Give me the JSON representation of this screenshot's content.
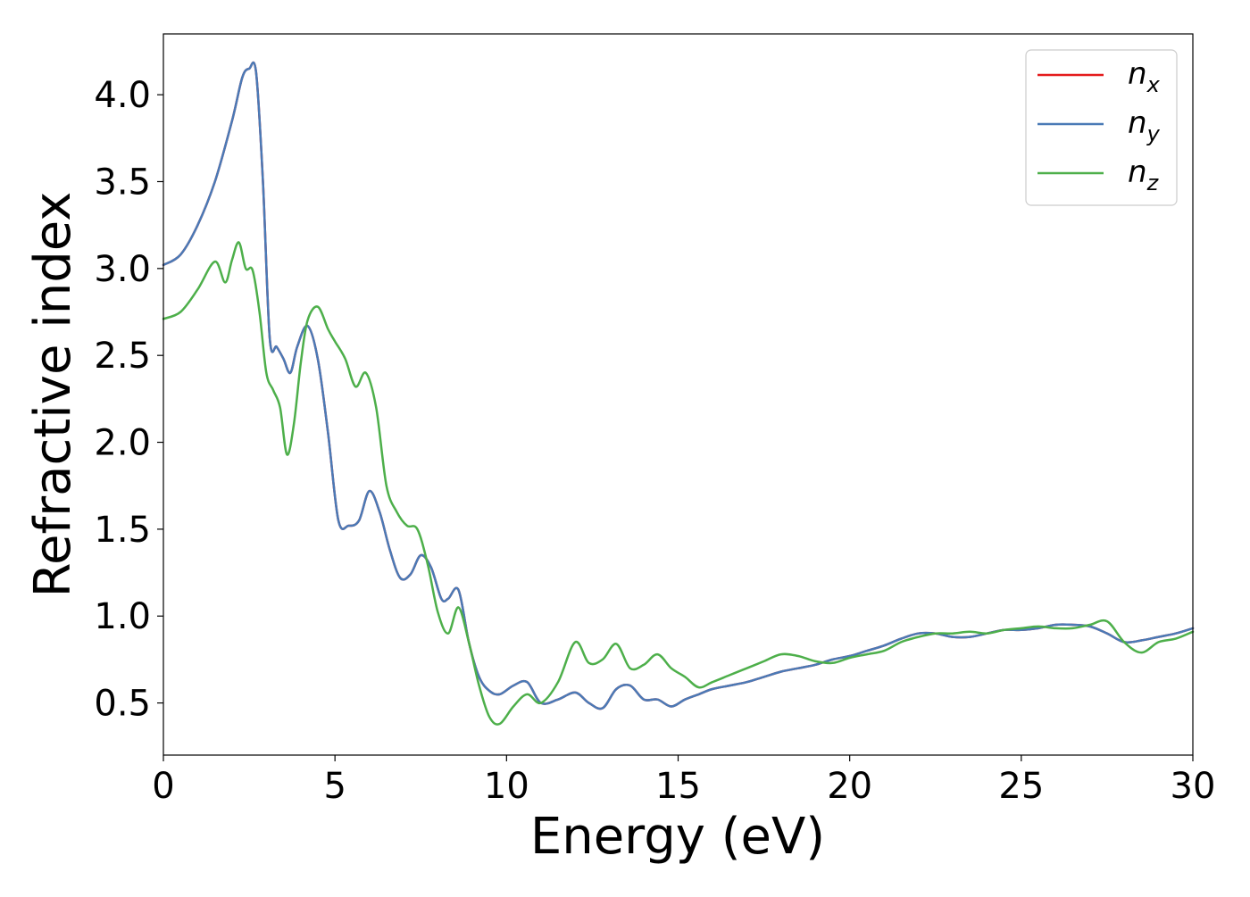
{
  "chart_data": {
    "type": "line",
    "title": "",
    "xlabel": "Energy (eV)",
    "ylabel": "Refractive index",
    "xlim": [
      0,
      30
    ],
    "ylim": [
      0.2,
      4.35
    ],
    "xticks": [
      0,
      5,
      10,
      15,
      20,
      25,
      30
    ],
    "xtick_labels": [
      "0",
      "5",
      "10",
      "15",
      "20",
      "25",
      "30"
    ],
    "yticks": [
      0.5,
      1.0,
      1.5,
      2.0,
      2.5,
      3.0,
      3.5,
      4.0
    ],
    "ytick_labels": [
      "0.5",
      "1.0",
      "1.5",
      "2.0",
      "2.5",
      "3.0",
      "3.5",
      "4.0"
    ],
    "grid": false,
    "legend_position": "top-right",
    "series": [
      {
        "name": "n_x",
        "label_base": "n",
        "label_sub": "x",
        "color": "#e41a1c",
        "x": [
          0,
          0.5,
          1.0,
          1.5,
          2.0,
          2.3,
          2.5,
          2.7,
          2.9,
          3.1,
          3.3,
          3.5,
          3.7,
          3.9,
          4.2,
          4.5,
          4.8,
          5.1,
          5.4,
          5.7,
          6.0,
          6.3,
          6.6,
          6.9,
          7.2,
          7.5,
          7.8,
          8.1,
          8.3,
          8.6,
          8.9,
          9.2,
          9.5,
          9.8,
          10.2,
          10.6,
          11.0,
          11.5,
          12.0,
          12.4,
          12.8,
          13.2,
          13.6,
          14.0,
          14.4,
          14.8,
          15.2,
          15.6,
          16.0,
          16.5,
          17.0,
          17.5,
          18.0,
          18.5,
          19.0,
          19.5,
          20.0,
          20.5,
          21.0,
          21.5,
          22.0,
          22.5,
          23.0,
          23.5,
          24.0,
          24.5,
          25.0,
          25.5,
          26.0,
          26.5,
          27.0,
          27.5,
          28.0,
          28.5,
          29.0,
          29.5,
          30.0
        ],
        "y": [
          3.02,
          3.08,
          3.25,
          3.5,
          3.85,
          4.1,
          4.15,
          4.13,
          3.5,
          2.6,
          2.55,
          2.48,
          2.4,
          2.55,
          2.67,
          2.48,
          2.05,
          1.55,
          1.52,
          1.55,
          1.72,
          1.6,
          1.38,
          1.22,
          1.24,
          1.35,
          1.28,
          1.1,
          1.1,
          1.15,
          0.85,
          0.65,
          0.57,
          0.55,
          0.6,
          0.62,
          0.5,
          0.52,
          0.56,
          0.5,
          0.47,
          0.58,
          0.6,
          0.52,
          0.52,
          0.48,
          0.52,
          0.55,
          0.58,
          0.6,
          0.62,
          0.65,
          0.68,
          0.7,
          0.72,
          0.75,
          0.77,
          0.8,
          0.83,
          0.87,
          0.9,
          0.9,
          0.88,
          0.88,
          0.9,
          0.92,
          0.92,
          0.93,
          0.95,
          0.95,
          0.94,
          0.9,
          0.85,
          0.86,
          0.88,
          0.9,
          0.93
        ]
      },
      {
        "name": "n_y",
        "label_base": "n",
        "label_sub": "y",
        "color": "#4a7ab6",
        "x": [
          0,
          0.5,
          1.0,
          1.5,
          2.0,
          2.3,
          2.5,
          2.7,
          2.9,
          3.1,
          3.3,
          3.5,
          3.7,
          3.9,
          4.2,
          4.5,
          4.8,
          5.1,
          5.4,
          5.7,
          6.0,
          6.3,
          6.6,
          6.9,
          7.2,
          7.5,
          7.8,
          8.1,
          8.3,
          8.6,
          8.9,
          9.2,
          9.5,
          9.8,
          10.2,
          10.6,
          11.0,
          11.5,
          12.0,
          12.4,
          12.8,
          13.2,
          13.6,
          14.0,
          14.4,
          14.8,
          15.2,
          15.6,
          16.0,
          16.5,
          17.0,
          17.5,
          18.0,
          18.5,
          19.0,
          19.5,
          20.0,
          20.5,
          21.0,
          21.5,
          22.0,
          22.5,
          23.0,
          23.5,
          24.0,
          24.5,
          25.0,
          25.5,
          26.0,
          26.5,
          27.0,
          27.5,
          28.0,
          28.5,
          29.0,
          29.5,
          30.0
        ],
        "y": [
          3.02,
          3.08,
          3.25,
          3.5,
          3.85,
          4.1,
          4.15,
          4.13,
          3.5,
          2.6,
          2.55,
          2.48,
          2.4,
          2.55,
          2.67,
          2.48,
          2.05,
          1.55,
          1.52,
          1.55,
          1.72,
          1.6,
          1.38,
          1.22,
          1.24,
          1.35,
          1.28,
          1.1,
          1.1,
          1.15,
          0.85,
          0.65,
          0.57,
          0.55,
          0.6,
          0.62,
          0.5,
          0.52,
          0.56,
          0.5,
          0.47,
          0.58,
          0.6,
          0.52,
          0.52,
          0.48,
          0.52,
          0.55,
          0.58,
          0.6,
          0.62,
          0.65,
          0.68,
          0.7,
          0.72,
          0.75,
          0.77,
          0.8,
          0.83,
          0.87,
          0.9,
          0.9,
          0.88,
          0.88,
          0.9,
          0.92,
          0.92,
          0.93,
          0.95,
          0.95,
          0.94,
          0.9,
          0.85,
          0.86,
          0.88,
          0.9,
          0.93
        ]
      },
      {
        "name": "n_z",
        "label_base": "n",
        "label_sub": "z",
        "color": "#4daf4a",
        "x": [
          0,
          0.5,
          1.0,
          1.5,
          1.8,
          2.0,
          2.2,
          2.4,
          2.6,
          2.8,
          3.0,
          3.2,
          3.4,
          3.6,
          3.8,
          4.0,
          4.2,
          4.5,
          4.8,
          5.0,
          5.3,
          5.6,
          5.9,
          6.2,
          6.5,
          6.8,
          7.1,
          7.4,
          7.7,
          8.0,
          8.3,
          8.6,
          8.9,
          9.2,
          9.5,
          9.8,
          10.2,
          10.6,
          11.0,
          11.5,
          12.0,
          12.4,
          12.8,
          13.2,
          13.6,
          14.0,
          14.4,
          14.8,
          15.2,
          15.6,
          16.0,
          16.5,
          17.0,
          17.5,
          18.0,
          18.5,
          19.0,
          19.5,
          20.0,
          20.5,
          21.0,
          21.5,
          22.0,
          22.5,
          23.0,
          23.5,
          24.0,
          24.5,
          25.0,
          25.5,
          26.0,
          26.5,
          27.0,
          27.5,
          28.0,
          28.5,
          29.0,
          29.5,
          30.0
        ],
        "y": [
          2.71,
          2.75,
          2.88,
          3.04,
          2.92,
          3.05,
          3.15,
          3.0,
          2.99,
          2.75,
          2.4,
          2.3,
          2.2,
          1.93,
          2.1,
          2.45,
          2.7,
          2.78,
          2.65,
          2.58,
          2.48,
          2.32,
          2.4,
          2.2,
          1.75,
          1.6,
          1.52,
          1.5,
          1.3,
          1.02,
          0.9,
          1.05,
          0.85,
          0.6,
          0.42,
          0.38,
          0.48,
          0.55,
          0.5,
          0.62,
          0.85,
          0.73,
          0.75,
          0.84,
          0.7,
          0.72,
          0.78,
          0.7,
          0.65,
          0.59,
          0.62,
          0.66,
          0.7,
          0.74,
          0.78,
          0.77,
          0.74,
          0.73,
          0.76,
          0.78,
          0.8,
          0.85,
          0.88,
          0.9,
          0.9,
          0.91,
          0.9,
          0.92,
          0.93,
          0.94,
          0.93,
          0.93,
          0.95,
          0.97,
          0.85,
          0.79,
          0.85,
          0.87,
          0.91
        ]
      }
    ]
  }
}
